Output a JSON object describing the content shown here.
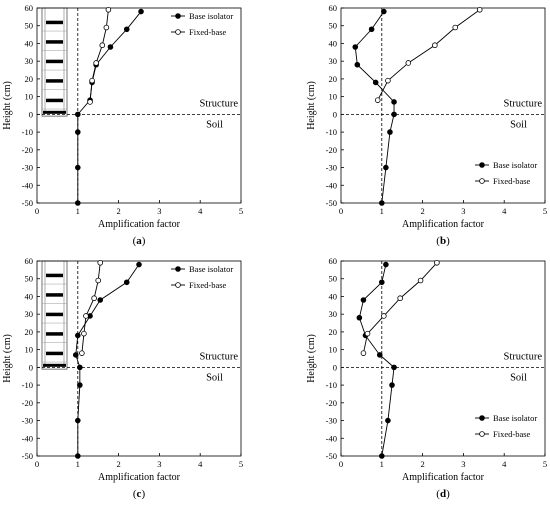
{
  "chart_data": [
    {
      "type": "line",
      "panel_label": "(a)",
      "xlabel": "Amplification factor",
      "ylabel": "Height (cm)",
      "xlim": [
        0,
        5
      ],
      "ylim": [
        -50,
        60
      ],
      "xticks": [
        "0",
        "1",
        "2",
        "3",
        "4",
        "5"
      ],
      "yticks": [
        "60",
        "50",
        "40",
        "30",
        "20",
        "10",
        "0",
        "-10",
        "-20",
        "-30",
        "-40",
        "-50"
      ],
      "legend_position": "top-right",
      "has_building_sketch": true,
      "annotations": {
        "structure": "Structure",
        "soil": "Soil"
      },
      "series": [
        {
          "name": "Base isolator",
          "marker": "filled-circle",
          "points": [
            [
              2.55,
              58
            ],
            [
              2.2,
              48
            ],
            [
              1.8,
              38
            ],
            [
              1.45,
              28
            ],
            [
              1.35,
              18
            ],
            [
              1.3,
              8
            ],
            [
              1.0,
              0
            ],
            [
              1.0,
              -10
            ],
            [
              1.0,
              -30
            ],
            [
              1.0,
              -50
            ]
          ]
        },
        {
          "name": "Fixed-base",
          "marker": "open-circle",
          "points": [
            [
              1.75,
              59
            ],
            [
              1.7,
              49
            ],
            [
              1.6,
              39
            ],
            [
              1.45,
              29
            ],
            [
              1.35,
              19
            ],
            [
              1.3,
              7
            ]
          ]
        }
      ]
    },
    {
      "type": "line",
      "panel_label": "(b)",
      "xlabel": "Amplification factor",
      "ylabel": "Height (cm)",
      "xlim": [
        0,
        5
      ],
      "ylim": [
        -50,
        60
      ],
      "xticks": [
        "0",
        "1",
        "2",
        "3",
        "4",
        "5"
      ],
      "yticks": [
        "60",
        "50",
        "40",
        "30",
        "20",
        "10",
        "0",
        "-10",
        "-20",
        "-30",
        "-40",
        "-50"
      ],
      "legend_position": "bottom-right",
      "has_building_sketch": false,
      "annotations": {
        "structure": "Structure",
        "soil": "Soil"
      },
      "series": [
        {
          "name": "Base isolator",
          "marker": "filled-circle",
          "points": [
            [
              1.05,
              58
            ],
            [
              0.75,
              48
            ],
            [
              0.35,
              38
            ],
            [
              0.4,
              28
            ],
            [
              0.85,
              18
            ],
            [
              1.3,
              7
            ],
            [
              1.3,
              0
            ],
            [
              1.2,
              -10
            ],
            [
              1.1,
              -30
            ],
            [
              1.0,
              -50
            ]
          ]
        },
        {
          "name": "Fixed-base",
          "marker": "open-circle",
          "points": [
            [
              3.4,
              59
            ],
            [
              2.8,
              49
            ],
            [
              2.3,
              39
            ],
            [
              1.65,
              29
            ],
            [
              1.15,
              19
            ],
            [
              0.9,
              8
            ]
          ]
        }
      ]
    },
    {
      "type": "line",
      "panel_label": "(c)",
      "xlabel": "Amplification factor",
      "ylabel": "Height (cm)",
      "xlim": [
        0,
        5
      ],
      "ylim": [
        -50,
        60
      ],
      "xticks": [
        "0",
        "1",
        "2",
        "3",
        "4",
        "5"
      ],
      "yticks": [
        "60",
        "50",
        "40",
        "30",
        "20",
        "10",
        "0",
        "-10",
        "-20",
        "-30",
        "-40",
        "-50"
      ],
      "legend_position": "top-right",
      "has_building_sketch": true,
      "annotations": {
        "structure": "Structure",
        "soil": "Soil"
      },
      "series": [
        {
          "name": "Base isolator",
          "marker": "filled-circle",
          "points": [
            [
              2.5,
              58
            ],
            [
              2.2,
              48
            ],
            [
              1.55,
              38
            ],
            [
              1.3,
              29
            ],
            [
              1.0,
              18
            ],
            [
              0.95,
              7
            ],
            [
              1.05,
              0
            ],
            [
              1.05,
              -10
            ],
            [
              1.0,
              -30
            ],
            [
              1.0,
              -50
            ]
          ]
        },
        {
          "name": "Fixed-base",
          "marker": "open-circle",
          "points": [
            [
              1.55,
              59
            ],
            [
              1.5,
              49
            ],
            [
              1.4,
              39
            ],
            [
              1.2,
              29
            ],
            [
              1.15,
              19
            ],
            [
              1.1,
              8
            ]
          ]
        }
      ]
    },
    {
      "type": "line",
      "panel_label": "(d)",
      "xlabel": "Amplification factor",
      "ylabel": "Height (cm)",
      "xlim": [
        0,
        5
      ],
      "ylim": [
        -50,
        60
      ],
      "xticks": [
        "0",
        "1",
        "2",
        "3",
        "4",
        "5"
      ],
      "yticks": [
        "60",
        "50",
        "40",
        "30",
        "20",
        "10",
        "0",
        "-10",
        "-20",
        "-30",
        "-40",
        "-50"
      ],
      "legend_position": "bottom-right",
      "has_building_sketch": false,
      "annotations": {
        "structure": "Structure",
        "soil": "Soil"
      },
      "series": [
        {
          "name": "Base isolator",
          "marker": "filled-circle",
          "points": [
            [
              1.1,
              58
            ],
            [
              1.0,
              48
            ],
            [
              0.55,
              38
            ],
            [
              0.45,
              28
            ],
            [
              0.6,
              18
            ],
            [
              0.95,
              7
            ],
            [
              1.3,
              0
            ],
            [
              1.25,
              -10
            ],
            [
              1.15,
              -30
            ],
            [
              1.0,
              -50
            ]
          ]
        },
        {
          "name": "Fixed-base",
          "marker": "open-circle",
          "points": [
            [
              2.35,
              59
            ],
            [
              1.95,
              49
            ],
            [
              1.45,
              39
            ],
            [
              1.05,
              29
            ],
            [
              0.65,
              19
            ],
            [
              0.55,
              8
            ]
          ]
        }
      ]
    }
  ]
}
